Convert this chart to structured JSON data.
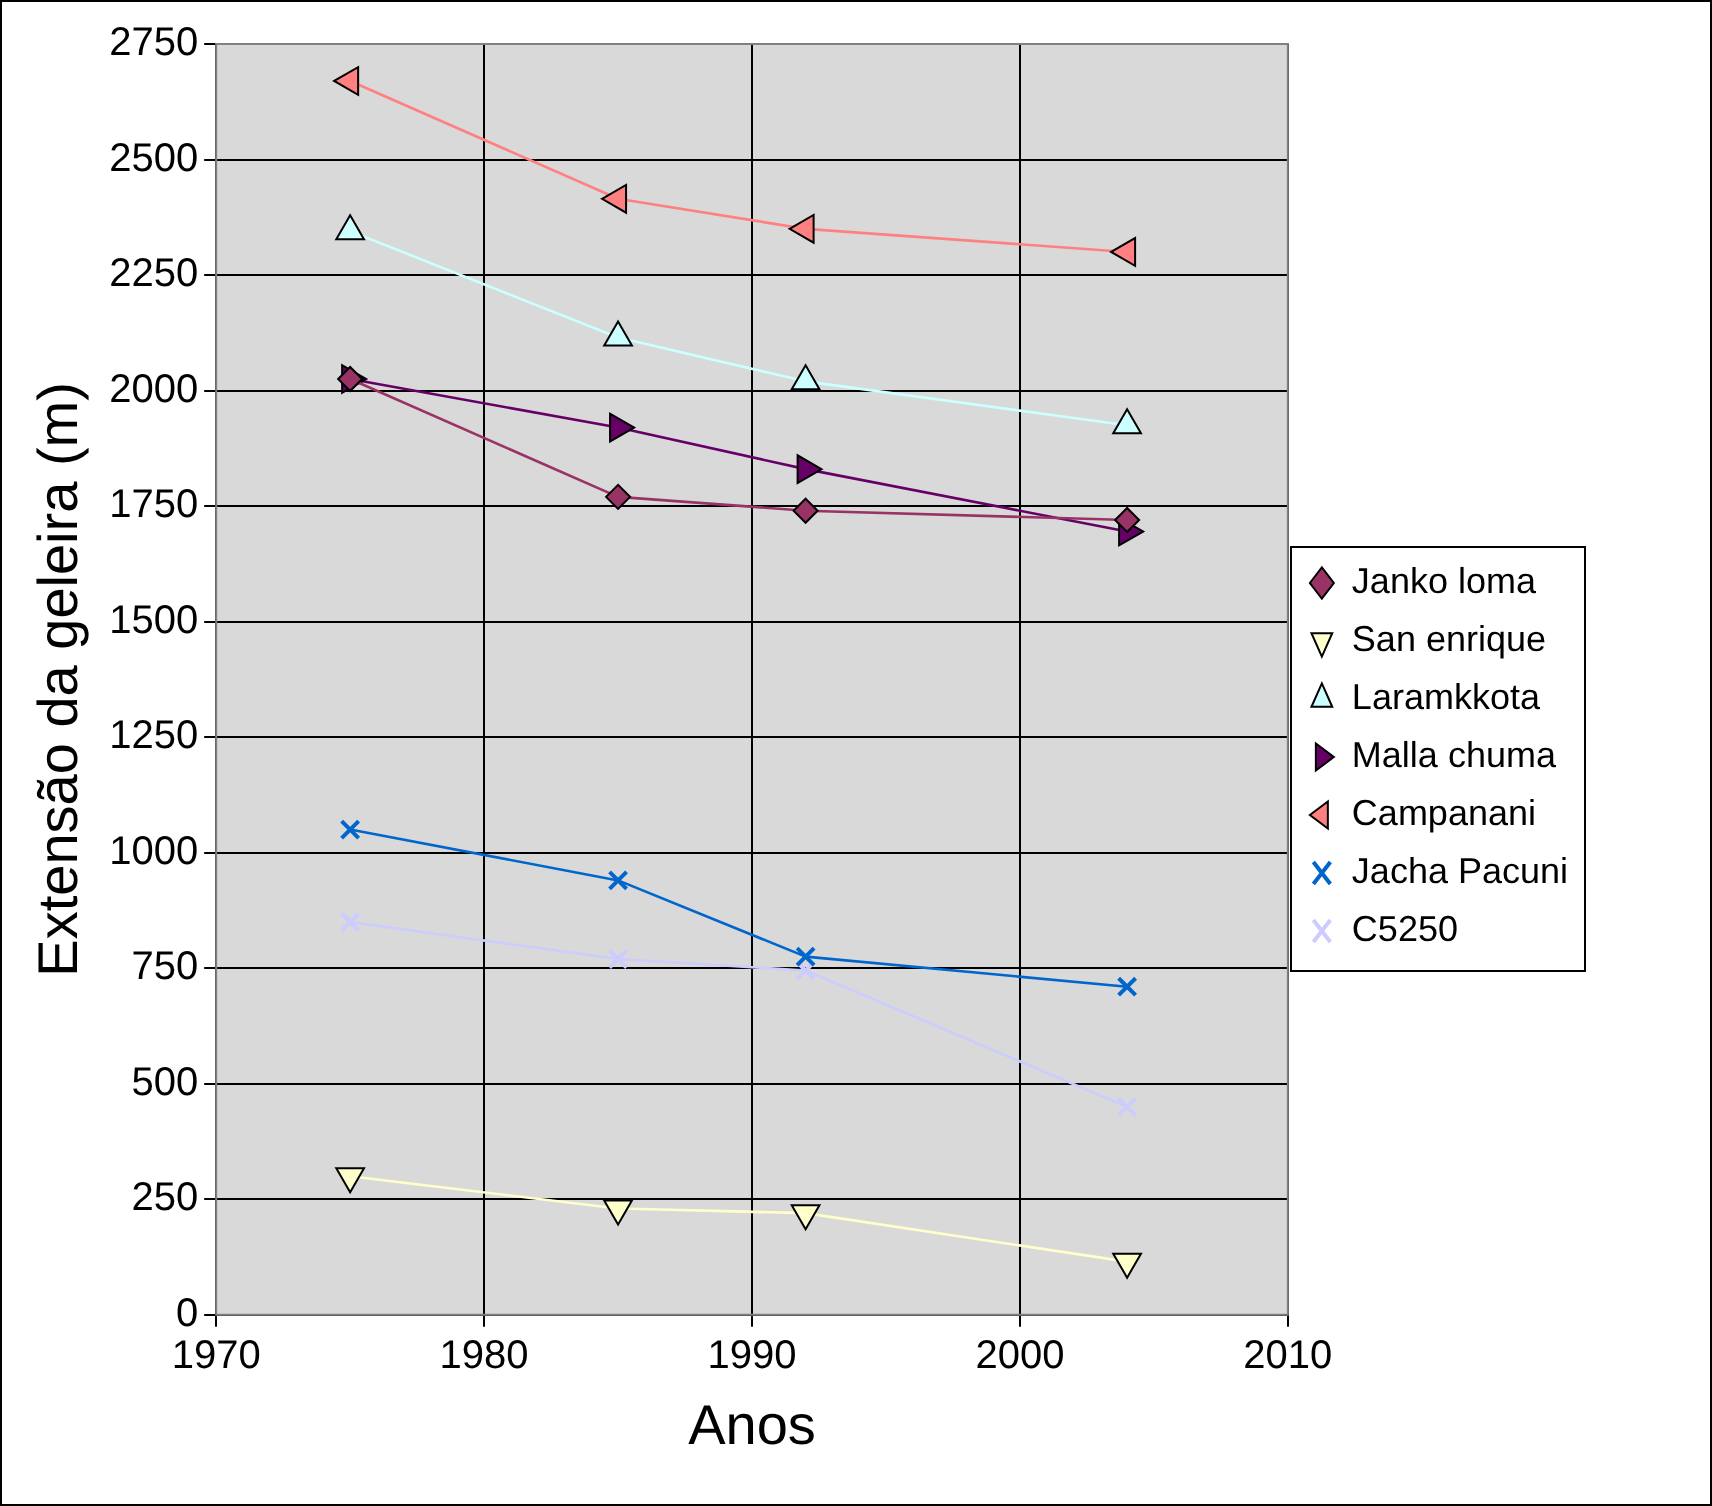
{
  "chart_data": {
    "type": "line",
    "xlabel": "Anos",
    "ylabel": "Extensão da geleira (m)",
    "x": [
      1975,
      1985,
      1992,
      2004
    ],
    "xlim": [
      1970,
      2010
    ],
    "xticks": [
      1970,
      1980,
      1990,
      2000,
      2010
    ],
    "ylim": [
      0,
      2750
    ],
    "yticks": [
      0,
      250,
      500,
      750,
      1000,
      1250,
      1500,
      1750,
      2000,
      2250,
      2500,
      2750
    ],
    "grid": true,
    "legend": "right",
    "line_style": "solid",
    "series": [
      {
        "name": "Janko loma",
        "color": "#993366",
        "marker": "diamond",
        "values": [
          2025,
          1770,
          1740,
          1720
        ]
      },
      {
        "name": "San enrique",
        "color": "#ffffcc",
        "marker": "triangle-down",
        "values": [
          300,
          230,
          220,
          115
        ]
      },
      {
        "name": "Laramkkota",
        "color": "#ccffff",
        "marker": "triangle",
        "values": [
          2345,
          2115,
          2020,
          1925
        ]
      },
      {
        "name": "Malla chuma",
        "color": "#660066",
        "marker": "triangle-right",
        "values": [
          2025,
          1920,
          1830,
          1695
        ]
      },
      {
        "name": "Campanani",
        "color": "#ff8080",
        "marker": "triangle-left",
        "values": [
          2670,
          2415,
          2350,
          2300
        ]
      },
      {
        "name": "Jacha Pacuni",
        "color": "#0066cc",
        "marker": "cross",
        "values": [
          1050,
          940,
          775,
          710
        ]
      },
      {
        "name": "C5250",
        "color": "#ccccff",
        "marker": "cross",
        "values": [
          850,
          770,
          745,
          450
        ]
      }
    ]
  }
}
